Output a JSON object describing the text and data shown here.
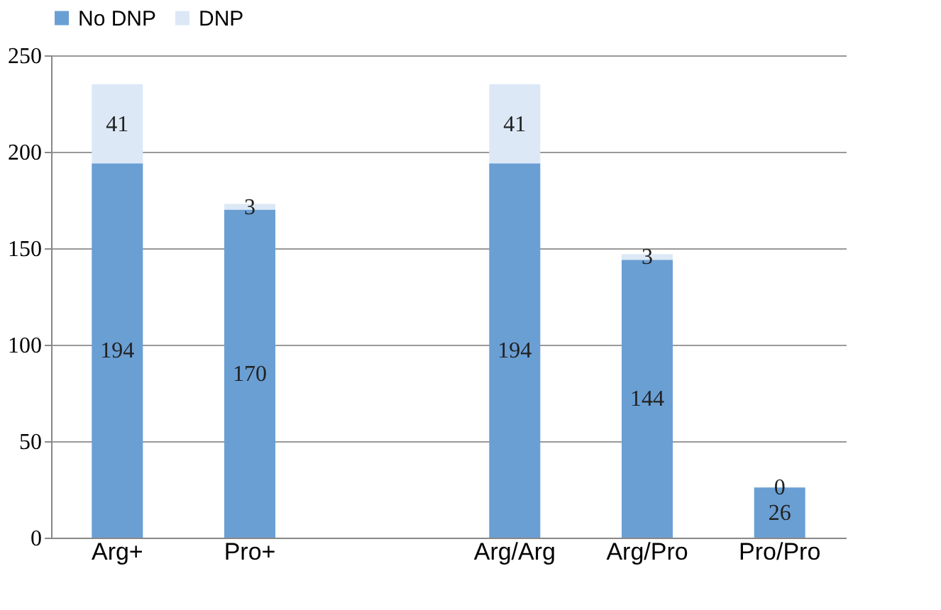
{
  "chart_data": {
    "type": "bar",
    "stacked": true,
    "categories": [
      "Arg+",
      "Pro+",
      null,
      "Arg/Arg",
      "Arg/Pro",
      "Pro/Pro"
    ],
    "series": [
      {
        "name": "No DNP",
        "color": "#6a9fd4",
        "values": [
          194,
          170,
          null,
          194,
          144,
          26
        ]
      },
      {
        "name": "DNP",
        "color": "#dce8f6",
        "values": [
          41,
          3,
          null,
          41,
          3,
          0
        ]
      }
    ],
    "ylim": [
      0,
      250
    ],
    "yticks": [
      0,
      50,
      100,
      150,
      200,
      250
    ],
    "grid": "y",
    "legend": "top",
    "data_labels": true
  }
}
